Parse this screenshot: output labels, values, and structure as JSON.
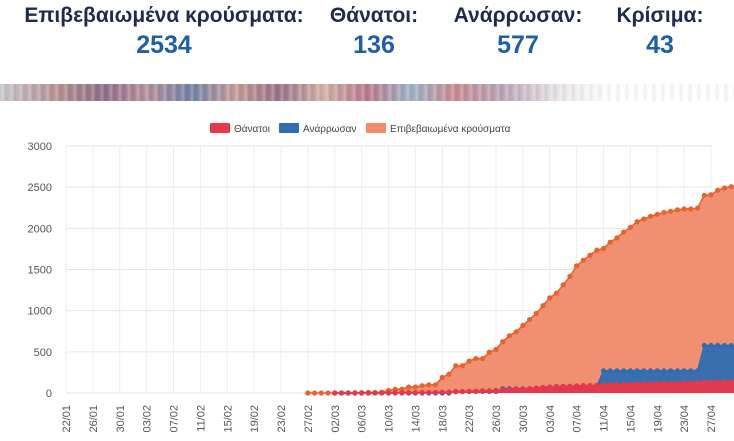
{
  "stats": [
    {
      "label": "Επιβεβαιωμένα κρούσματα:",
      "value": "2534"
    },
    {
      "label": "Θάνατοι:",
      "value": "136"
    },
    {
      "label": "Ανάρρωσαν:",
      "value": "577"
    },
    {
      "label": "Κρίσιμα:",
      "value": "43"
    }
  ],
  "colors": {
    "deaths": "#e8374b",
    "recovered": "#2f6eb2",
    "confirmed": "#f08a68",
    "confirmed_dot": "#e8622e",
    "stat_value": "#1f5fa8",
    "stat_label": "#1f2a4d"
  },
  "chart_data": {
    "type": "area",
    "title": "",
    "xlabel": "",
    "ylabel": "",
    "ylim": [
      0,
      3000
    ],
    "yticks": [
      "3000",
      "2500",
      "2000",
      "1500",
      "1000",
      "500",
      "0"
    ],
    "xticks": [
      "22/01",
      "26/01",
      "30/01",
      "03/02",
      "07/02",
      "11/02",
      "15/02",
      "19/02",
      "23/02",
      "27/02",
      "02/03",
      "06/03",
      "10/03",
      "14/03",
      "18/03",
      "22/03",
      "26/03",
      "30/03",
      "03/04",
      "07/04",
      "11/04",
      "15/04",
      "19/04",
      "23/04",
      "27/04"
    ],
    "x_start": "22/01",
    "grid": true,
    "legend_position": "top",
    "series": [
      {
        "name": "Θάνατοι",
        "start_index": 40,
        "values": [
          0,
          0,
          0,
          0,
          0,
          1,
          1,
          1,
          1,
          3,
          4,
          5,
          5,
          6,
          6,
          8,
          10,
          13,
          15,
          17,
          20,
          22,
          26,
          28,
          32,
          38,
          43,
          49,
          50,
          53,
          63,
          68,
          73,
          79,
          81,
          83,
          86,
          90,
          91,
          93,
          98,
          99,
          101,
          102,
          105,
          108,
          110,
          113,
          114,
          116,
          116,
          118,
          121,
          121,
          125,
          129,
          130,
          131,
          134,
          136,
          136,
          136
        ]
      },
      {
        "name": "Ανάρρωσαν",
        "start_index": 40,
        "values": [
          0,
          0,
          0,
          0,
          0,
          0,
          0,
          0,
          0,
          0,
          0,
          0,
          0,
          0,
          0,
          0,
          0,
          0,
          19,
          19,
          19,
          19,
          19,
          19,
          19,
          52,
          52,
          52,
          52,
          52,
          52,
          52,
          52,
          78,
          78,
          78,
          78,
          78,
          78,
          78,
          269,
          269,
          269,
          269,
          269,
          269,
          269,
          269,
          269,
          269,
          269,
          269,
          269,
          269,
          269,
          577,
          577,
          577,
          577,
          577,
          577,
          577
        ]
      },
      {
        "name": "Επιβεβαιωμένα κρούσματα",
        "start_index": 36,
        "values": [
          0,
          0,
          0,
          0,
          0,
          0,
          1,
          3,
          4,
          7,
          7,
          9,
          31,
          45,
          46,
          73,
          73,
          89,
          99,
          99,
          190,
          228,
          331,
          331,
          387,
          418,
          418,
          495,
          530,
          624,
          695,
          743,
          821,
          892,
          966,
          1061,
          1156,
          1212,
          1314,
          1415,
          1544,
          1613,
          1673,
          1735,
          1755,
          1832,
          1884,
          1955,
          2011,
          2081,
          2114,
          2145,
          2170,
          2192,
          2207,
          2224,
          2235,
          2235,
          2245,
          2401,
          2408,
          2463,
          2490,
          2506,
          2517,
          2534
        ]
      }
    ]
  }
}
